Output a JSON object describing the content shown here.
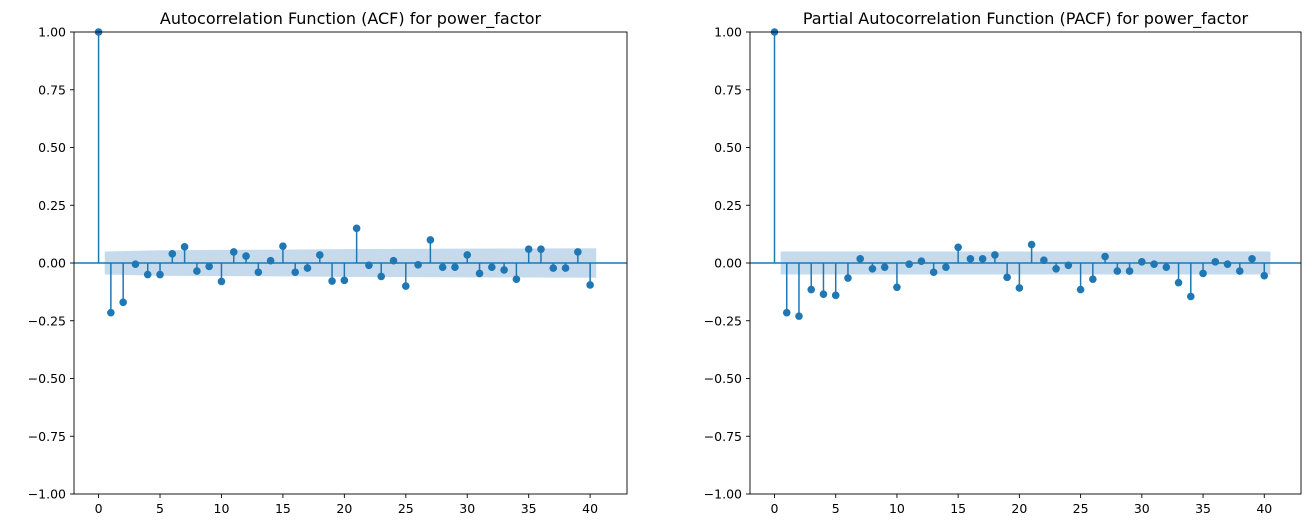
{
  "chart_data": [
    {
      "type": "stem",
      "title": "Autocorrelation Function (ACF) for power_factor",
      "xlabel": "",
      "ylabel": "",
      "xlim": [
        -2,
        43
      ],
      "ylim": [
        -1,
        1
      ],
      "x_ticks": [
        0,
        5,
        10,
        15,
        20,
        25,
        30,
        35,
        40
      ],
      "y_ticks": [
        -1.0,
        -0.75,
        -0.5,
        -0.25,
        0.0,
        0.25,
        0.5,
        0.75,
        1.0
      ],
      "y_tick_labels": [
        "−1.00",
        "−0.75",
        "−0.50",
        "−0.25",
        "0.00",
        "0.25",
        "0.50",
        "0.75",
        "1.00"
      ],
      "x_tick_labels": [
        "0",
        "5",
        "10",
        "15",
        "20",
        "25",
        "30",
        "35",
        "40"
      ],
      "grid": false,
      "confidence_band": {
        "lags": [
          0.5,
          5,
          10,
          15,
          20,
          25,
          30,
          35,
          40.5
        ],
        "upper": [
          0.05,
          0.055,
          0.057,
          0.058,
          0.06,
          0.061,
          0.062,
          0.063,
          0.064
        ],
        "lower": [
          -0.05,
          -0.055,
          -0.057,
          -0.058,
          -0.06,
          -0.061,
          -0.062,
          -0.063,
          -0.064
        ]
      },
      "lags": [
        0,
        1,
        2,
        3,
        4,
        5,
        6,
        7,
        8,
        9,
        10,
        11,
        12,
        13,
        14,
        15,
        16,
        17,
        18,
        19,
        20,
        21,
        22,
        23,
        24,
        25,
        26,
        27,
        28,
        29,
        30,
        31,
        32,
        33,
        34,
        35,
        36,
        37,
        38,
        39,
        40
      ],
      "values": [
        1.0,
        -0.215,
        -0.17,
        -0.005,
        -0.05,
        -0.05,
        0.04,
        0.07,
        -0.035,
        -0.015,
        -0.08,
        0.048,
        0.03,
        -0.04,
        0.01,
        0.073,
        -0.04,
        -0.022,
        0.035,
        -0.078,
        -0.075,
        0.15,
        -0.01,
        -0.058,
        0.01,
        -0.1,
        -0.008,
        0.1,
        -0.018,
        -0.018,
        0.035,
        -0.045,
        -0.018,
        -0.03,
        -0.07,
        0.06,
        0.06,
        -0.022,
        -0.022,
        0.048,
        -0.095
      ]
    },
    {
      "type": "stem",
      "title": "Partial Autocorrelation Function (PACF) for power_factor",
      "xlabel": "",
      "ylabel": "",
      "xlim": [
        -2,
        43
      ],
      "ylim": [
        -1,
        1
      ],
      "x_ticks": [
        0,
        5,
        10,
        15,
        20,
        25,
        30,
        35,
        40
      ],
      "y_ticks": [
        -1.0,
        -0.75,
        -0.5,
        -0.25,
        0.0,
        0.25,
        0.5,
        0.75,
        1.0
      ],
      "y_tick_labels": [
        "−1.00",
        "−0.75",
        "−0.50",
        "−0.25",
        "0.00",
        "0.25",
        "0.50",
        "0.75",
        "1.00"
      ],
      "x_tick_labels": [
        "0",
        "5",
        "10",
        "15",
        "20",
        "25",
        "30",
        "35",
        "40"
      ],
      "grid": false,
      "confidence_band": {
        "lags": [
          0.5,
          40.5
        ],
        "upper": [
          0.05,
          0.05
        ],
        "lower": [
          -0.05,
          -0.05
        ]
      },
      "lags": [
        0,
        1,
        2,
        3,
        4,
        5,
        6,
        7,
        8,
        9,
        10,
        11,
        12,
        13,
        14,
        15,
        16,
        17,
        18,
        19,
        20,
        21,
        22,
        23,
        24,
        25,
        26,
        27,
        28,
        29,
        30,
        31,
        32,
        33,
        34,
        35,
        36,
        37,
        38,
        39,
        40
      ],
      "values": [
        1.0,
        -0.215,
        -0.23,
        -0.115,
        -0.135,
        -0.14,
        -0.065,
        0.018,
        -0.025,
        -0.018,
        -0.105,
        -0.005,
        0.008,
        -0.04,
        -0.018,
        0.068,
        0.018,
        0.018,
        0.035,
        -0.062,
        -0.108,
        0.08,
        0.012,
        -0.025,
        -0.01,
        -0.115,
        -0.07,
        0.028,
        -0.035,
        -0.035,
        0.005,
        -0.005,
        -0.018,
        -0.085,
        -0.145,
        -0.045,
        0.005,
        -0.005,
        -0.035,
        0.018,
        -0.055
      ]
    }
  ],
  "colors": {
    "stem": "#1f77b4",
    "band": "#a6c8e4",
    "axis": "#000000"
  }
}
